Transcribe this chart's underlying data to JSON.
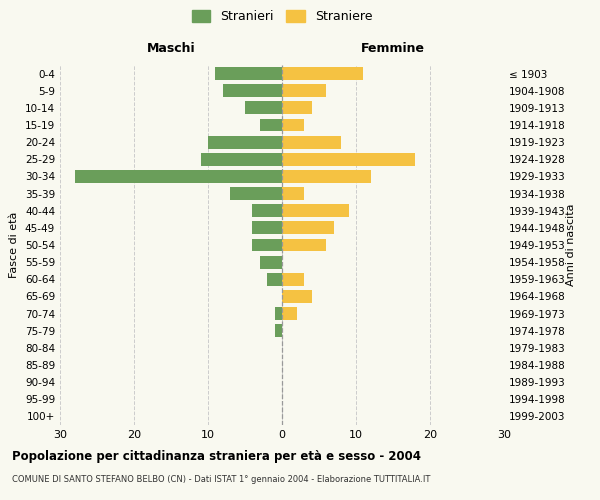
{
  "age_groups": [
    "0-4",
    "5-9",
    "10-14",
    "15-19",
    "20-24",
    "25-29",
    "30-34",
    "35-39",
    "40-44",
    "45-49",
    "50-54",
    "55-59",
    "60-64",
    "65-69",
    "70-74",
    "75-79",
    "80-84",
    "85-89",
    "90-94",
    "95-99",
    "100+"
  ],
  "birth_years": [
    "1999-2003",
    "1994-1998",
    "1989-1993",
    "1984-1988",
    "1979-1983",
    "1974-1978",
    "1969-1973",
    "1964-1968",
    "1959-1963",
    "1954-1958",
    "1949-1953",
    "1944-1948",
    "1939-1943",
    "1934-1938",
    "1929-1933",
    "1924-1928",
    "1919-1923",
    "1914-1918",
    "1909-1913",
    "1904-1908",
    "≤ 1903"
  ],
  "males": [
    9,
    8,
    5,
    3,
    10,
    11,
    28,
    7,
    4,
    4,
    4,
    3,
    2,
    0,
    1,
    1,
    0,
    0,
    0,
    0,
    0
  ],
  "females": [
    11,
    6,
    4,
    3,
    8,
    18,
    12,
    3,
    9,
    7,
    6,
    0,
    3,
    4,
    2,
    0,
    0,
    0,
    0,
    0,
    0
  ],
  "male_color": "#6a9e5a",
  "female_color": "#f5c242",
  "background_color": "#f9f9f0",
  "grid_color": "#cccccc",
  "title": "Popolazione per cittadinanza straniera per età e sesso - 2004",
  "subtitle": "COMUNE DI SANTO STEFANO BELBO (CN) - Dati ISTAT 1° gennaio 2004 - Elaborazione TUTTITALIA.IT",
  "xlabel_left": "Maschi",
  "xlabel_right": "Femmine",
  "ylabel_left": "Fasce di età",
  "ylabel_right": "Anni di nascita",
  "legend_male": "Stranieri",
  "legend_female": "Straniere",
  "xlim": 30
}
